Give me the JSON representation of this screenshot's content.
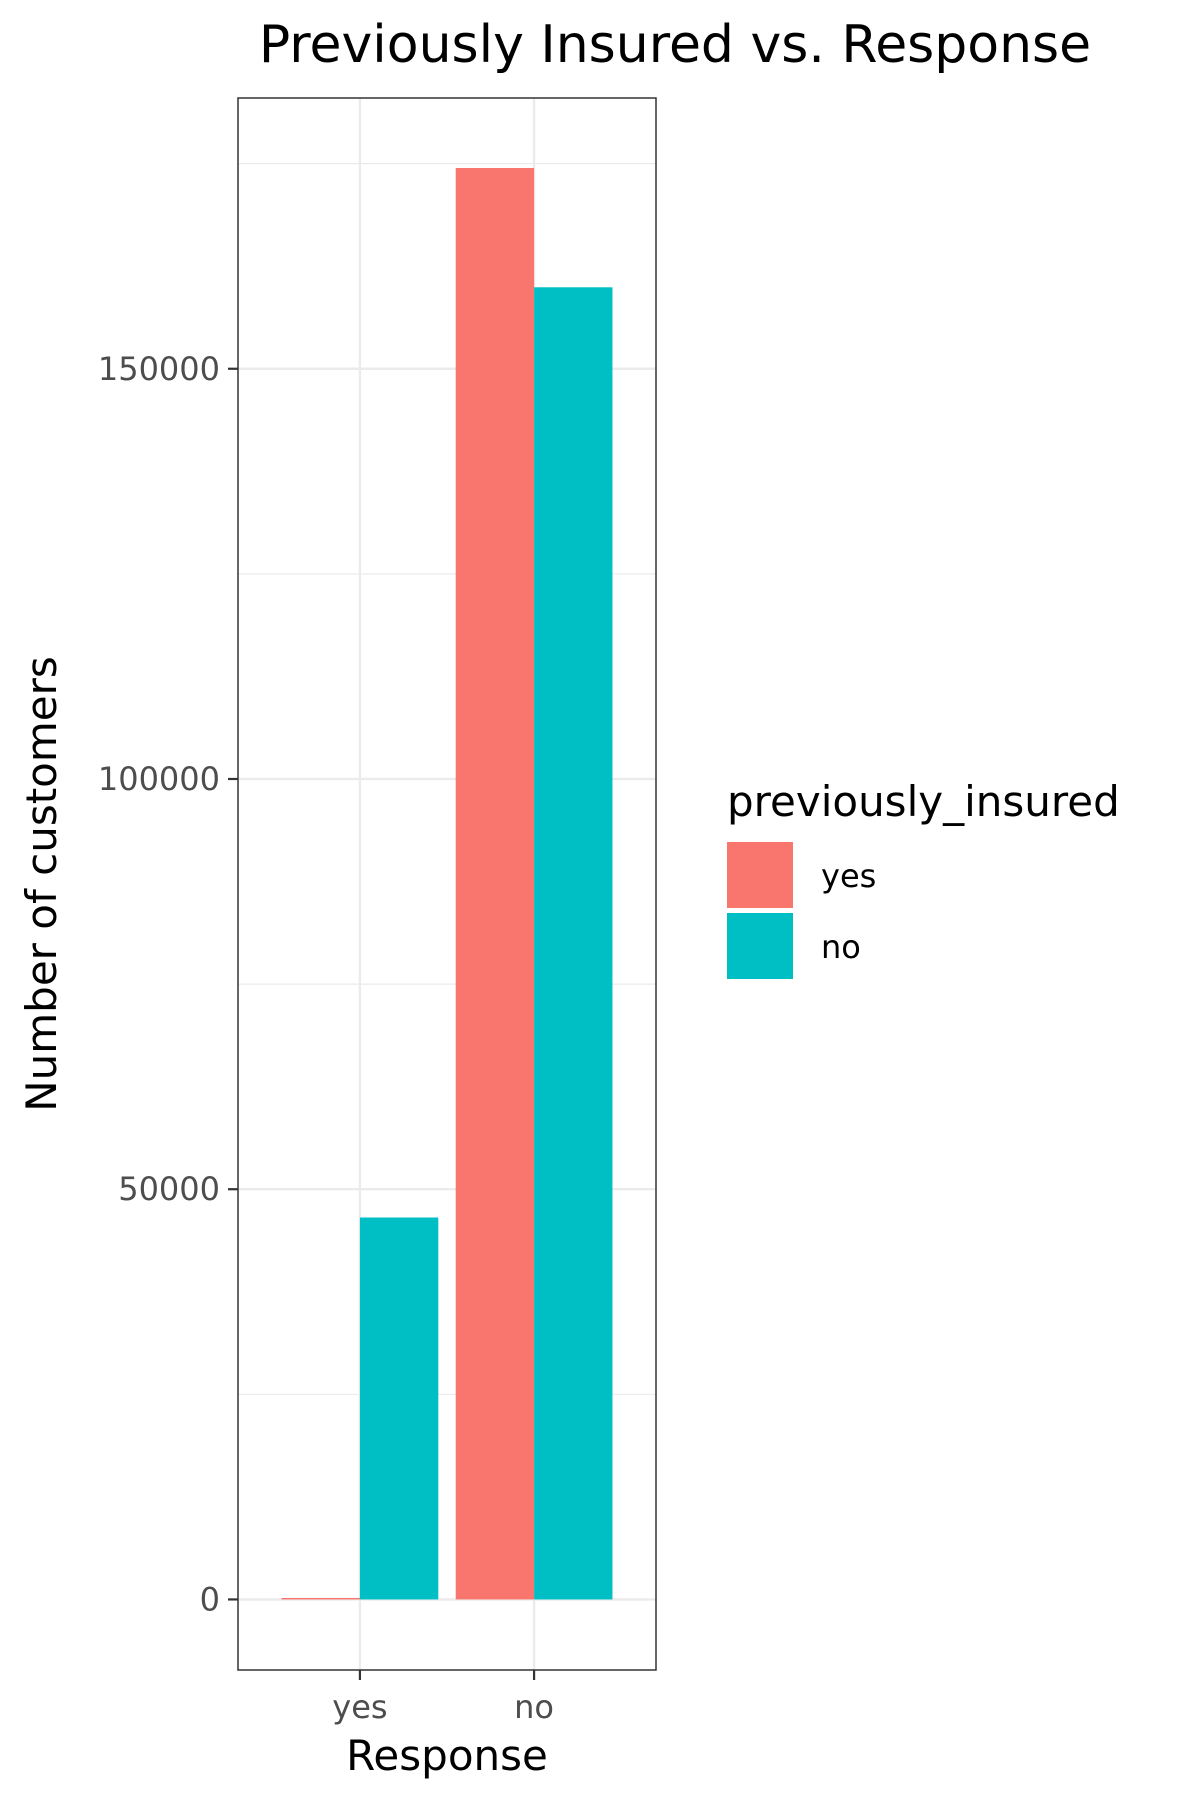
{
  "chart_data": {
    "type": "bar",
    "title": "Previously Insured vs. Response",
    "xlabel": "Response",
    "ylabel": "Number of customers",
    "categories": [
      "yes",
      "no"
    ],
    "series": [
      {
        "name": "yes",
        "color": "#F8766D",
        "values": [
          158,
          174470
        ]
      },
      {
        "name": "no",
        "color": "#00BFC4",
        "values": [
          46552,
          159929
        ]
      }
    ],
    "ylim": [
      -8600,
      183000
    ],
    "yticks": [
      0,
      50000,
      100000,
      150000
    ],
    "ytick_labels": [
      "0",
      "50000",
      "100000",
      "150000"
    ],
    "legend": {
      "title": "previously_insured",
      "position": "right"
    },
    "grid": true
  }
}
